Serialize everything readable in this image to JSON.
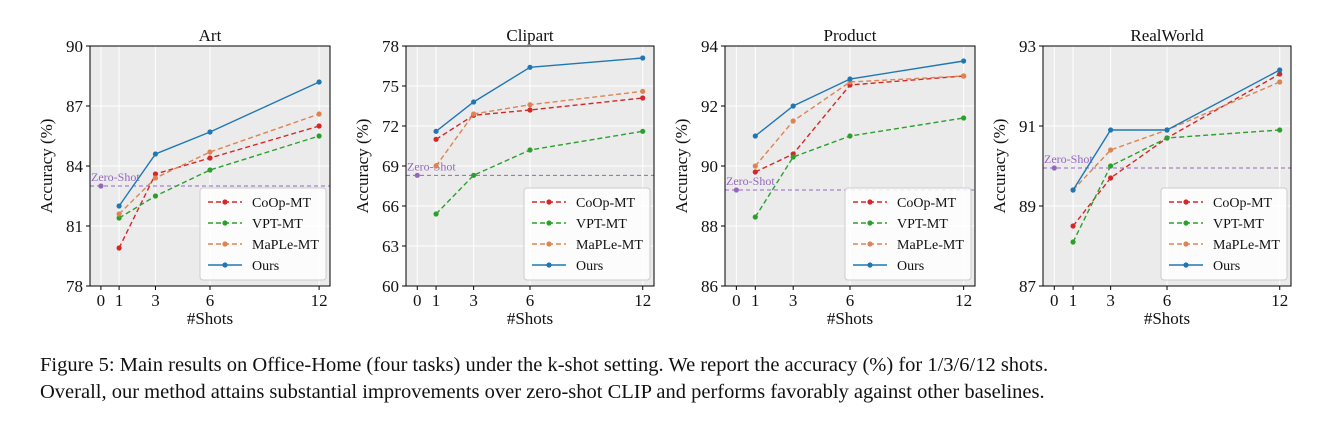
{
  "caption": {
    "line1": "Figure 5: Main results on Office-Home (four tasks) under the k-shot setting. We report the accuracy (%) for 1/3/6/12 shots.",
    "line2": "Overall, our method attains substantial improvements over zero-shot CLIP and performs favorably against other baselines."
  },
  "chart_data": [
    {
      "type": "line",
      "title": "Art",
      "xlabel": "#Shots",
      "ylabel": "Accuracy (%)",
      "x_ticks": [
        0,
        1,
        3,
        6,
        12
      ],
      "x": [
        1,
        3,
        6,
        12
      ],
      "ylim": [
        78,
        90
      ],
      "y_ticks": [
        78,
        81,
        84,
        87,
        90
      ],
      "grid": true,
      "legend_position": "lower-right",
      "zero_shot": {
        "label": "Zero-Shot",
        "x": 0,
        "value": 83.0
      },
      "series": [
        {
          "name": "CoOp-MT",
          "color": "#d62728",
          "style": "dashed",
          "values": [
            79.9,
            83.6,
            84.4,
            86.0
          ]
        },
        {
          "name": "VPT-MT",
          "color": "#2ca02c",
          "style": "dashed",
          "values": [
            81.4,
            82.5,
            83.8,
            85.5
          ]
        },
        {
          "name": "MaPLe-MT",
          "color": "#dd8452",
          "style": "dashed",
          "values": [
            81.6,
            83.4,
            84.7,
            86.6
          ]
        },
        {
          "name": "Ours",
          "color": "#1f77b4",
          "style": "solid",
          "values": [
            82.0,
            84.6,
            85.7,
            88.2
          ]
        }
      ]
    },
    {
      "type": "line",
      "title": "Clipart",
      "xlabel": "#Shots",
      "ylabel": "Accuracy (%)",
      "x_ticks": [
        0,
        1,
        3,
        6,
        12
      ],
      "x": [
        1,
        3,
        6,
        12
      ],
      "ylim": [
        60,
        78
      ],
      "y_ticks": [
        60,
        63,
        66,
        69,
        72,
        75,
        78
      ],
      "grid": true,
      "legend_position": "lower-right",
      "zero_shot": {
        "label": "Zero-Shot",
        "x": 0,
        "value": 68.3
      },
      "series": [
        {
          "name": "CoOp-MT",
          "color": "#d62728",
          "style": "dashed",
          "values": [
            71.0,
            72.8,
            73.2,
            74.1
          ]
        },
        {
          "name": "VPT-MT",
          "color": "#2ca02c",
          "style": "dashed",
          "values": [
            65.4,
            68.3,
            70.2,
            71.6
          ]
        },
        {
          "name": "MaPLe-MT",
          "color": "#dd8452",
          "style": "dashed",
          "values": [
            69.0,
            72.9,
            73.6,
            74.6
          ]
        },
        {
          "name": "Ours",
          "color": "#1f77b4",
          "style": "solid",
          "values": [
            71.6,
            73.8,
            76.4,
            77.1
          ]
        }
      ]
    },
    {
      "type": "line",
      "title": "Product",
      "xlabel": "#Shots",
      "ylabel": "Accuracy (%)",
      "x_ticks": [
        0,
        1,
        3,
        6,
        12
      ],
      "x": [
        1,
        3,
        6,
        12
      ],
      "ylim": [
        86,
        94
      ],
      "y_ticks": [
        86,
        88,
        90,
        92,
        94
      ],
      "grid": true,
      "legend_position": "lower-right",
      "zero_shot": {
        "label": "Zero-Shot",
        "x": 0,
        "value": 89.2
      },
      "series": [
        {
          "name": "CoOp-MT",
          "color": "#d62728",
          "style": "dashed",
          "values": [
            89.8,
            90.4,
            92.7,
            93.0
          ]
        },
        {
          "name": "VPT-MT",
          "color": "#2ca02c",
          "style": "dashed",
          "values": [
            88.3,
            90.3,
            91.0,
            91.6
          ]
        },
        {
          "name": "MaPLe-MT",
          "color": "#dd8452",
          "style": "dashed",
          "values": [
            90.0,
            91.5,
            92.8,
            93.0
          ]
        },
        {
          "name": "Ours",
          "color": "#1f77b4",
          "style": "solid",
          "values": [
            91.0,
            92.0,
            92.9,
            93.5
          ]
        }
      ]
    },
    {
      "type": "line",
      "title": "RealWorld",
      "xlabel": "#Shots",
      "ylabel": "Accuracy (%)",
      "x_ticks": [
        0,
        1,
        3,
        6,
        12
      ],
      "x": [
        1,
        3,
        6,
        12
      ],
      "ylim": [
        87,
        93
      ],
      "y_ticks": [
        87,
        89,
        91,
        93
      ],
      "grid": true,
      "legend_position": "lower-right",
      "zero_shot": {
        "label": "Zero-Shot",
        "x": 0,
        "value": 89.95
      },
      "series": [
        {
          "name": "CoOp-MT",
          "color": "#d62728",
          "style": "dashed",
          "values": [
            88.5,
            89.7,
            90.7,
            92.3
          ]
        },
        {
          "name": "VPT-MT",
          "color": "#2ca02c",
          "style": "dashed",
          "values": [
            88.1,
            90.0,
            90.7,
            90.9
          ]
        },
        {
          "name": "MaPLe-MT",
          "color": "#dd8452",
          "style": "dashed",
          "values": [
            89.4,
            90.4,
            90.9,
            92.1
          ]
        },
        {
          "name": "Ours",
          "color": "#1f77b4",
          "style": "solid",
          "values": [
            89.4,
            90.9,
            90.9,
            92.4
          ]
        }
      ]
    }
  ]
}
